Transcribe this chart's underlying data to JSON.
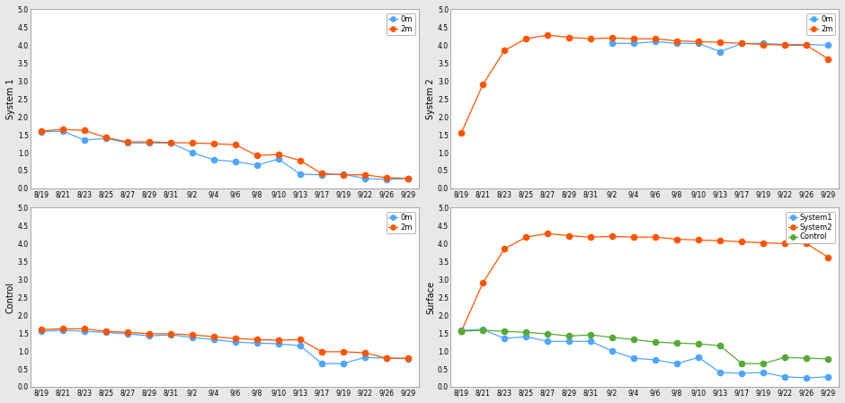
{
  "x_labels": [
    "8/19",
    "8/21",
    "8/23",
    "8/25",
    "8/27",
    "8/29",
    "8/31",
    "9/2",
    "9/4",
    "9/6",
    "9/8",
    "9/10",
    "9/13",
    "9/17",
    "9/19",
    "9/22",
    "9/26",
    "9/29"
  ],
  "sys1_0m": [
    1.58,
    1.6,
    1.35,
    1.4,
    1.27,
    1.27,
    1.27,
    1.0,
    0.8,
    0.75,
    0.65,
    0.82,
    0.4,
    0.38,
    0.4,
    0.28,
    0.25,
    0.28
  ],
  "sys1_2m": [
    1.6,
    1.65,
    1.62,
    1.42,
    1.3,
    1.3,
    1.28,
    1.27,
    1.25,
    1.22,
    0.92,
    0.95,
    0.78,
    0.42,
    0.38,
    0.38,
    0.3,
    0.28
  ],
  "sys2_0m": [
    null,
    null,
    null,
    null,
    null,
    null,
    null,
    4.05,
    4.05,
    4.1,
    4.05,
    4.05,
    3.82,
    4.05,
    4.05,
    4.02,
    4.02,
    4.0
  ],
  "sys2_2m": [
    1.55,
    2.9,
    3.85,
    4.18,
    4.28,
    4.22,
    4.18,
    4.2,
    4.18,
    4.18,
    4.12,
    4.1,
    4.08,
    4.05,
    4.02,
    4.0,
    4.0,
    3.62
  ],
  "ctrl_0m": [
    1.55,
    1.58,
    1.55,
    1.52,
    1.48,
    1.42,
    1.45,
    1.38,
    1.32,
    1.25,
    1.22,
    1.2,
    1.15,
    0.65,
    0.65,
    0.82,
    0.8,
    0.78
  ],
  "ctrl_2m": [
    1.6,
    1.62,
    1.62,
    1.55,
    1.52,
    1.48,
    1.48,
    1.45,
    1.4,
    1.35,
    1.32,
    1.3,
    1.32,
    0.98,
    0.98,
    0.95,
    0.8,
    0.8
  ],
  "surf_sys1": [
    1.58,
    1.6,
    1.35,
    1.4,
    1.27,
    1.27,
    1.27,
    1.0,
    0.8,
    0.75,
    0.65,
    0.82,
    0.4,
    0.38,
    0.4,
    0.28,
    0.25,
    0.28
  ],
  "surf_sys2": [
    1.55,
    2.9,
    3.85,
    4.18,
    4.28,
    4.22,
    4.18,
    4.2,
    4.18,
    4.18,
    4.12,
    4.1,
    4.08,
    4.05,
    4.02,
    4.0,
    4.0,
    3.62
  ],
  "surf_ctrl": [
    1.55,
    1.58,
    1.55,
    1.52,
    1.48,
    1.42,
    1.45,
    1.38,
    1.32,
    1.25,
    1.22,
    1.2,
    1.15,
    0.65,
    0.65,
    0.82,
    0.8,
    0.78
  ],
  "color_blue": "#4DA6FF",
  "color_orange": "#FF5500",
  "color_green": "#55AA33",
  "fig_bg": "#E8E8E8",
  "plot_bg": "#FFFFFF",
  "ylim": [
    0.0,
    5.0
  ],
  "yticks": [
    0.0,
    0.5,
    1.0,
    1.5,
    2.0,
    2.5,
    3.0,
    3.5,
    4.0,
    4.5,
    5.0
  ],
  "tick_fontsize": 5.5,
  "label_fontsize": 7,
  "legend_fontsize": 6
}
